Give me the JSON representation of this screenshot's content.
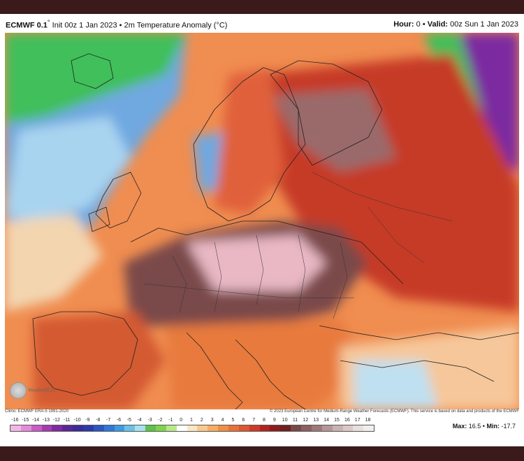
{
  "header": {
    "model": "ECMWF 0.1",
    "degree": "°",
    "init": "Init 00z 1 Jan 2023",
    "bullet": "•",
    "product": "2m Temperature Anomaly (°C)",
    "hour_label": "Hour:",
    "hour_value": "0",
    "valid_label": "Valid:",
    "valid_value": "00z Sun 1 Jan 2023"
  },
  "credits": {
    "climo": "Climo: ECMWF ERA-5 1991-2020",
    "copyright": "© 2023 European Centre for Medium-Range Weather Forecasts (ECMWF). This service is based on data and products of the ECMWF"
  },
  "logo": {
    "text": "WeatherBELL"
  },
  "colorbar": {
    "ticks": [
      "-16",
      "-15",
      "-14",
      "-13",
      "-12",
      "-11",
      "-10",
      "-9",
      "-8",
      "-7",
      "-6",
      "-5",
      "-4",
      "-3",
      "-2",
      "-1",
      "0",
      "1",
      "2",
      "3",
      "4",
      "5",
      "6",
      "7",
      "8",
      "9",
      "10",
      "11",
      "12",
      "13",
      "14",
      "15",
      "16",
      "17",
      "18"
    ],
    "colors": [
      "#f2b6e6",
      "#e38bd8",
      "#c95bc6",
      "#a63bb0",
      "#7f2aa0",
      "#5a2596",
      "#3b2a99",
      "#2b3aa8",
      "#2c55c2",
      "#2f78d6",
      "#3f9be0",
      "#6cc0e8",
      "#a8e0ef",
      "#5fc04a",
      "#7ed44e",
      "#b8e88a",
      "#ffffff",
      "#fbe7c6",
      "#f8c98f",
      "#f4ad63",
      "#ef8e45",
      "#e8713a",
      "#de5530",
      "#cc3a28",
      "#b02420",
      "#8e1c1c",
      "#6e2020",
      "#7a4848",
      "#8a6060",
      "#9c7a7a",
      "#b49696",
      "#c9b2b2",
      "#dbc8c8",
      "#e9dede",
      "#f3eeee"
    ]
  },
  "stats": {
    "max_label": "Max:",
    "max_value": "16.5",
    "sep": "•",
    "min_label": "Min:",
    "min_value": "-17.7"
  }
}
